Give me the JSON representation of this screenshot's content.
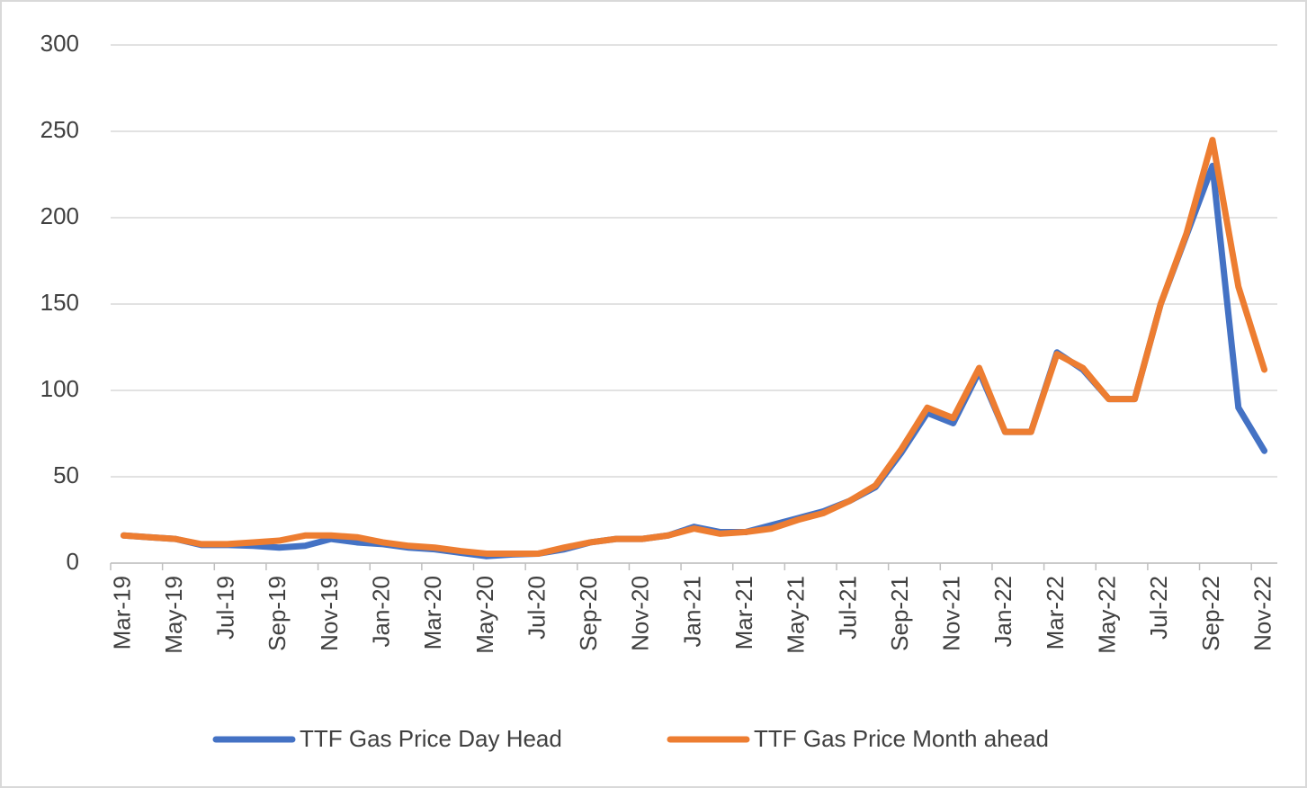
{
  "chart_data": {
    "type": "line",
    "categories": [
      "Mar-19",
      null,
      "May-19",
      null,
      "Jul-19",
      null,
      "Sep-19",
      null,
      "Nov-19",
      null,
      "Jan-20",
      null,
      "Mar-20",
      null,
      "May-20",
      null,
      "Jul-20",
      null,
      "Sep-20",
      null,
      "Nov-20",
      null,
      "Jan-21",
      null,
      "Mar-21",
      null,
      "May-21",
      null,
      "Jul-21",
      null,
      "Sep-21",
      null,
      "Nov-21",
      null,
      "Jan-22",
      null,
      "Mar-22",
      null,
      "May-22",
      null,
      "Jul-22",
      null,
      "Sep-22",
      null,
      "Nov-22"
    ],
    "series": [
      {
        "name": "TTF Gas Price Day Head",
        "color": "#4472c4",
        "values": [
          16,
          15,
          14,
          10.5,
          10.5,
          10,
          9,
          10,
          14,
          12,
          11,
          9,
          8,
          6,
          4,
          5,
          5.5,
          8,
          12,
          14,
          14,
          16,
          21,
          18,
          18,
          22,
          26,
          30,
          36,
          44,
          64,
          87,
          81,
          111,
          76,
          76,
          122,
          112,
          95,
          95,
          150,
          190,
          230,
          90,
          65
        ]
      },
      {
        "name": "TTF Gas Price Month ahead",
        "color": "#ed7d31",
        "values": [
          16,
          15,
          14,
          11,
          11,
          12,
          13,
          16,
          16,
          15,
          12,
          10,
          9,
          7,
          5.5,
          5.5,
          5.5,
          9,
          12,
          14,
          14,
          16,
          20,
          17,
          18,
          20,
          25,
          29,
          36,
          45,
          66,
          90,
          84,
          113,
          76,
          76,
          121,
          113,
          95,
          95,
          150,
          191,
          245,
          160,
          112
        ]
      }
    ],
    "ylim": [
      0,
      300
    ],
    "yticks": [
      0,
      50,
      100,
      150,
      200,
      250,
      300
    ],
    "grid": true,
    "legend": "bottom"
  }
}
